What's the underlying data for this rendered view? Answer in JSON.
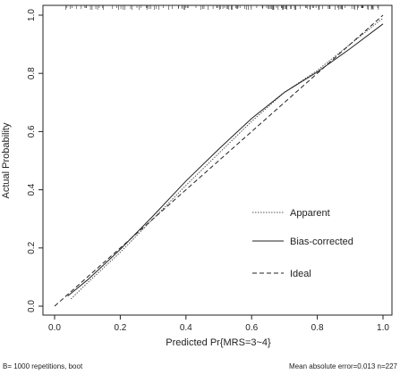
{
  "chart_data": {
    "type": "line",
    "xlabel": "Predicted Pr{MRS=3~4}",
    "ylabel": "Actual Probability",
    "xlim": [
      0.0,
      1.0
    ],
    "ylim": [
      0.0,
      1.0
    ],
    "x_ticks": [
      "0.0",
      "0.2",
      "0.4",
      "0.6",
      "0.8",
      "1.0"
    ],
    "y_ticks": [
      "0.0",
      "0.2",
      "0.4",
      "0.6",
      "0.8",
      "1.0"
    ],
    "grid": false,
    "legend_position": "bottom-right",
    "series": [
      {
        "name": "Apparent",
        "style": "dotted",
        "color": "#555555",
        "points": [
          [
            0.05,
            0.025
          ],
          [
            0.1,
            0.08
          ],
          [
            0.2,
            0.185
          ],
          [
            0.3,
            0.3
          ],
          [
            0.4,
            0.415
          ],
          [
            0.5,
            0.525
          ],
          [
            0.6,
            0.635
          ],
          [
            0.7,
            0.735
          ],
          [
            0.8,
            0.81
          ],
          [
            0.9,
            0.9
          ],
          [
            1.0,
            0.99
          ]
        ]
      },
      {
        "name": "Bias-corrected",
        "style": "solid",
        "color": "#222222",
        "points": [
          [
            0.04,
            0.035
          ],
          [
            0.1,
            0.09
          ],
          [
            0.2,
            0.195
          ],
          [
            0.3,
            0.31
          ],
          [
            0.4,
            0.43
          ],
          [
            0.5,
            0.54
          ],
          [
            0.6,
            0.645
          ],
          [
            0.7,
            0.735
          ],
          [
            0.8,
            0.805
          ],
          [
            0.9,
            0.885
          ],
          [
            1.0,
            0.97
          ]
        ]
      },
      {
        "name": "Ideal",
        "style": "dashed",
        "color": "#222222",
        "points": [
          [
            0.0,
            0.0
          ],
          [
            1.0,
            1.0
          ]
        ]
      }
    ],
    "footnote_left": "B= 1000 repetitions, boot",
    "footnote_right": "Mean absolute error=0.013 n=227"
  }
}
